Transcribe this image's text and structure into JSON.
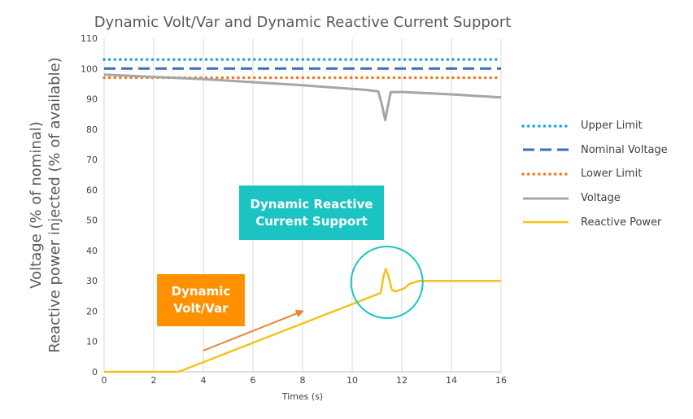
{
  "chart_data": {
    "type": "line",
    "title": "Dynamic Volt/Var and Dynamic Reactive Current Support",
    "xlabel": "Times (s)",
    "ylabel_line1": "Voltage (% of nominal)",
    "ylabel_line2": "Reactive power injected (% of available)",
    "xlim": [
      0,
      16
    ],
    "ylim": [
      0,
      110
    ],
    "x_ticks": [
      "0",
      "2",
      "4",
      "6",
      "8",
      "10",
      "12",
      "14",
      "16"
    ],
    "y_ticks": [
      "0",
      "10",
      "20",
      "30",
      "40",
      "50",
      "60",
      "70",
      "80",
      "90",
      "100",
      "110"
    ],
    "grid": "vertical",
    "legend_position": "right",
    "series": [
      {
        "name": "Upper Limit",
        "color": "#1ea7dc",
        "style": "dotted",
        "points": [
          [
            0,
            103
          ],
          [
            16,
            103
          ]
        ]
      },
      {
        "name": "Nominal Voltage",
        "color": "#3a6fb5",
        "style": "dashed",
        "points": [
          [
            0,
            100
          ],
          [
            16,
            100
          ]
        ]
      },
      {
        "name": "Lower Limit",
        "color": "#ef7d1f",
        "style": "dotted",
        "points": [
          [
            0,
            97
          ],
          [
            16,
            97
          ]
        ]
      },
      {
        "name": "Voltage",
        "color": "#a6a6a6",
        "style": "solid",
        "points": [
          [
            0,
            98
          ],
          [
            4,
            96.5
          ],
          [
            8,
            94.5
          ],
          [
            10.5,
            93
          ],
          [
            11.05,
            92.5
          ],
          [
            11.2,
            88
          ],
          [
            11.33,
            83
          ],
          [
            11.45,
            88
          ],
          [
            11.55,
            92.2
          ],
          [
            12,
            92.3
          ],
          [
            14,
            91.5
          ],
          [
            16,
            90.5
          ]
        ]
      },
      {
        "name": "Reactive Power",
        "color": "#f5c21b",
        "style": "solid",
        "points": [
          [
            0,
            0
          ],
          [
            3,
            0
          ],
          [
            11.15,
            26
          ],
          [
            11.25,
            31
          ],
          [
            11.35,
            34
          ],
          [
            11.45,
            32
          ],
          [
            11.6,
            27
          ],
          [
            11.75,
            26.5
          ],
          [
            12.1,
            27.5
          ],
          [
            12.3,
            29
          ],
          [
            12.7,
            30
          ],
          [
            16,
            30
          ]
        ]
      }
    ],
    "annotations": [
      {
        "text": "Dynamic Reactive\nCurrent Support",
        "color": "#1cc3c3"
      },
      {
        "text": "Dynamic\nVolt/Var",
        "color": "#ff9100"
      }
    ],
    "arrow": {
      "from": [
        4,
        7
      ],
      "to": [
        8,
        20
      ],
      "color": "#e8853a"
    },
    "circle": {
      "center": [
        11.4,
        29.5
      ],
      "color": "#1cc3c3"
    }
  }
}
